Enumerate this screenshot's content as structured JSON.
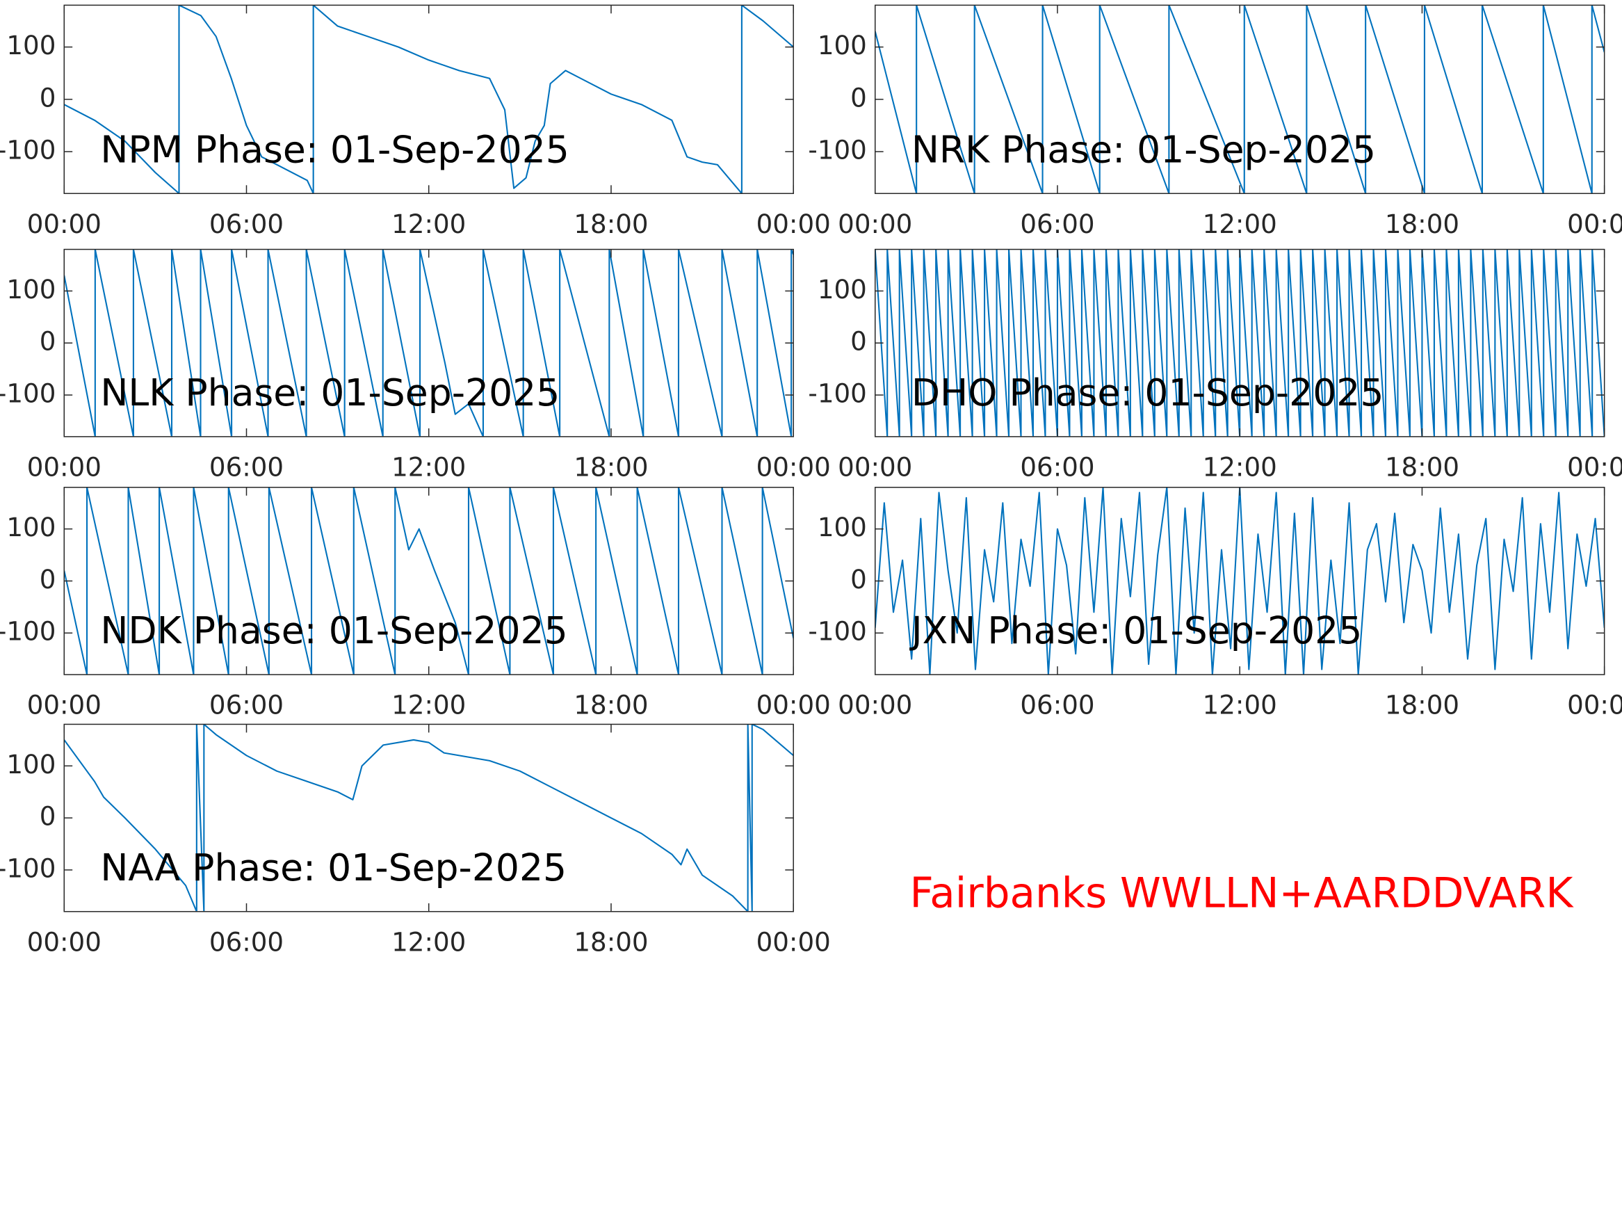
{
  "chart_data": [
    {
      "type": "line",
      "title": "NPM Phase: 01-Sep-2025",
      "color": "#0072bd",
      "x": [
        0,
        1,
        2,
        3,
        3.78,
        3.78,
        4.5,
        5,
        5.5,
        6,
        6.5,
        7,
        8,
        8.2,
        8.2,
        9,
        10,
        11,
        12,
        13,
        14,
        14.5,
        14.8,
        15.2,
        15.5,
        15.8,
        16,
        16.5,
        17,
        18,
        19,
        20,
        20.5,
        21,
        21.5,
        22.3,
        22.3,
        23,
        24
      ],
      "values": [
        -10,
        -40,
        -80,
        -140,
        -180,
        180,
        160,
        120,
        40,
        -50,
        -110,
        -125,
        -155,
        -180,
        180,
        140,
        120,
        100,
        75,
        55,
        40,
        -20,
        -170,
        -150,
        -80,
        -50,
        30,
        55,
        40,
        10,
        -10,
        -40,
        -110,
        -120,
        -125,
        -180,
        180,
        150,
        100
      ],
      "xlim": [
        0,
        24
      ],
      "xticks": [
        {
          "value": 0,
          "label": "00:00"
        },
        {
          "value": 6,
          "label": "06:00"
        },
        {
          "value": 12,
          "label": "12:00"
        },
        {
          "value": 18,
          "label": "18:00"
        },
        {
          "value": 24,
          "label": "00:00"
        }
      ],
      "ylim": [
        -180,
        180
      ],
      "yticks": [
        -100,
        0,
        100
      ]
    },
    {
      "type": "line",
      "title": "NRK Phase: 01-Sep-2025",
      "color": "#0072bd",
      "x": [
        0,
        1.36,
        1.36,
        3.27,
        3.27,
        5.51,
        5.51,
        7.39,
        7.39,
        9.67,
        9.67,
        12.15,
        12.15,
        14.2,
        14.2,
        16.14,
        16.14,
        18.08,
        18.08,
        19.98,
        19.98,
        21.99,
        21.99,
        23.59,
        23.59,
        24
      ],
      "values": [
        130,
        -180,
        180,
        -180,
        180,
        -180,
        180,
        -180,
        180,
        -180,
        180,
        -180,
        180,
        -180,
        180,
        -180,
        180,
        -180,
        180,
        -180,
        180,
        -180,
        180,
        -180,
        180,
        90
      ],
      "xlim": [
        0,
        24
      ],
      "xticks": [
        {
          "value": 0,
          "label": "00:00"
        },
        {
          "value": 6,
          "label": "06:00"
        },
        {
          "value": 12,
          "label": "12:00"
        },
        {
          "value": 18,
          "label": "18:00"
        },
        {
          "value": 24,
          "label": "00:00"
        }
      ],
      "ylim": [
        -180,
        180
      ],
      "yticks": [
        -100,
        0,
        100
      ]
    },
    {
      "type": "line",
      "title": "NLK Phase: 01-Sep-2025",
      "color": "#0072bd",
      "x": [
        0,
        1.02,
        1.02,
        2.28,
        2.28,
        3.54,
        3.54,
        4.49,
        4.49,
        5.51,
        5.51,
        6.71,
        6.71,
        7.97,
        7.97,
        9.23,
        9.23,
        10.49,
        10.49,
        11.71,
        11.71,
        12.53,
        12.87,
        13.31,
        13.79,
        13.79,
        15.11,
        15.11,
        16.31,
        16.31,
        17.94,
        17.94,
        19.06,
        19.06,
        20.22,
        20.22,
        21.65,
        21.65,
        22.81,
        22.81,
        23.93,
        23.93,
        24
      ],
      "values": [
        130,
        -180,
        180,
        -180,
        180,
        -180,
        180,
        -180,
        180,
        -180,
        180,
        -180,
        180,
        -180,
        180,
        -180,
        180,
        -180,
        180,
        -180,
        180,
        -38,
        -137,
        -117,
        -180,
        180,
        -180,
        180,
        -180,
        180,
        -180,
        180,
        -180,
        180,
        -180,
        180,
        -180,
        180,
        -180,
        180,
        -180,
        180,
        170
      ],
      "xlim": [
        0,
        24
      ],
      "xticks": [
        {
          "value": 0,
          "label": "00:00"
        },
        {
          "value": 6,
          "label": "06:00"
        },
        {
          "value": 12,
          "label": "12:00"
        },
        {
          "value": 18,
          "label": "18:00"
        },
        {
          "value": 24,
          "label": "00:00"
        }
      ],
      "ylim": [
        -180,
        180
      ],
      "yticks": [
        -100,
        0,
        100
      ]
    },
    {
      "type": "line",
      "title": "DHO Phase: 01-Sep-2025",
      "color": "#0072bd",
      "x": [
        0,
        0.4,
        0.4,
        0.8,
        0.8,
        1.2,
        1.2,
        1.6,
        1.6,
        2,
        2,
        2.4,
        2.4,
        2.8,
        2.8,
        3.2,
        3.2,
        3.6,
        3.6,
        4,
        4,
        4.4,
        4.4,
        4.8,
        4.8,
        5.2,
        5.2,
        5.6,
        5.6,
        6,
        6,
        6.4,
        6.4,
        6.8,
        6.8,
        7.2,
        7.2,
        7.6,
        7.6,
        8,
        8,
        8.4,
        8.4,
        8.8,
        8.8,
        9.2,
        9.2,
        9.6,
        9.6,
        10,
        10,
        10.4,
        10.4,
        10.8,
        10.8,
        11.2,
        11.2,
        11.6,
        11.6,
        12,
        12,
        12.4,
        12.4,
        12.8,
        12.8,
        13.2,
        13.2,
        13.6,
        13.6,
        14,
        14,
        14.4,
        14.4,
        14.8,
        14.8,
        15.2,
        15.2,
        15.6,
        15.6,
        16,
        16,
        16.4,
        16.4,
        16.8,
        16.8,
        17.2,
        17.2,
        17.6,
        17.6,
        18,
        18,
        18.4,
        18.4,
        18.8,
        18.8,
        19.2,
        19.2,
        19.6,
        19.6,
        20,
        20,
        20.4,
        20.4,
        20.8,
        20.8,
        21.2,
        21.2,
        21.6,
        21.6,
        22,
        22,
        22.4,
        22.4,
        22.8,
        22.8,
        23.2,
        23.2,
        23.6,
        23.6,
        24
      ],
      "values": [
        180,
        -180,
        180,
        -180,
        180,
        -180,
        180,
        -180,
        180,
        -180,
        180,
        -180,
        180,
        -180,
        180,
        -180,
        180,
        -180,
        180,
        -180,
        180,
        -180,
        180,
        -180,
        180,
        -180,
        180,
        -180,
        180,
        -180,
        180,
        -180,
        180,
        -180,
        180,
        -180,
        180,
        -180,
        180,
        -180,
        180,
        -180,
        180,
        -180,
        180,
        -180,
        180,
        -180,
        180,
        -180,
        180,
        -180,
        180,
        -180,
        180,
        -180,
        180,
        -180,
        180,
        -180,
        180,
        -180,
        180,
        -180,
        180,
        -180,
        180,
        -180,
        180,
        -180,
        180,
        -180,
        180,
        -180,
        180,
        -180,
        180,
        -180,
        180,
        -180,
        180,
        -180,
        180,
        -180,
        180,
        -180,
        180,
        -180,
        180,
        -180,
        180,
        -180,
        180,
        -180,
        180,
        -180,
        180,
        -180,
        180,
        -180,
        180,
        -180,
        180,
        -180,
        180,
        -180,
        180,
        -180,
        180,
        -180,
        180,
        -180,
        180,
        -180,
        180,
        -180,
        180,
        -180,
        180,
        -180
      ],
      "xlim": [
        0,
        24
      ],
      "xticks": [
        {
          "value": 0,
          "label": "00:00"
        },
        {
          "value": 6,
          "label": "06:00"
        },
        {
          "value": 12,
          "label": "12:00"
        },
        {
          "value": 18,
          "label": "18:00"
        },
        {
          "value": 24,
          "label": "00:00"
        }
      ],
      "ylim": [
        -180,
        180
      ],
      "yticks": [
        -100,
        0,
        100
      ]
    },
    {
      "type": "line",
      "title": "NDK Phase: 01-Sep-2025",
      "color": "#0072bd",
      "x": [
        0,
        0.75,
        0.75,
        2.11,
        2.11,
        3.13,
        3.13,
        4.26,
        4.26,
        5.41,
        5.41,
        6.74,
        6.74,
        8.14,
        8.14,
        9.53,
        9.53,
        10.89,
        10.89,
        11.34,
        11.68,
        12.19,
        12.87,
        13.31,
        13.31,
        14.67,
        14.67,
        16.1,
        16.1,
        17.5,
        17.5,
        18.86,
        18.86,
        20.22,
        20.22,
        21.65,
        21.65,
        22.98,
        22.98,
        24
      ],
      "values": [
        20,
        -180,
        180,
        -180,
        180,
        -180,
        180,
        -180,
        180,
        -180,
        180,
        -180,
        180,
        -180,
        180,
        -180,
        180,
        -180,
        180,
        60,
        100,
        20,
        -80,
        -180,
        180,
        -180,
        180,
        -180,
        180,
        -180,
        180,
        -180,
        180,
        -180,
        180,
        -180,
        180,
        -180,
        180,
        -110
      ],
      "xlim": [
        0,
        24
      ],
      "xticks": [
        {
          "value": 0,
          "label": "00:00"
        },
        {
          "value": 6,
          "label": "06:00"
        },
        {
          "value": 12,
          "label": "12:00"
        },
        {
          "value": 18,
          "label": "18:00"
        },
        {
          "value": 24,
          "label": "00:00"
        }
      ],
      "ylim": [
        -180,
        180
      ],
      "yticks": [
        -100,
        0,
        100
      ]
    },
    {
      "type": "line",
      "title": "JXN Phase: 01-Sep-2025",
      "color": "#0072bd",
      "x": [
        0,
        0.3,
        0.6,
        0.9,
        1.2,
        1.5,
        1.8,
        2.1,
        2.4,
        2.7,
        3,
        3.3,
        3.6,
        3.9,
        4.2,
        4.5,
        4.8,
        5.1,
        5.4,
        5.7,
        6,
        6.3,
        6.6,
        6.9,
        7.2,
        7.5,
        7.8,
        8.1,
        8.4,
        8.7,
        9,
        9.3,
        9.6,
        9.9,
        10.2,
        10.5,
        10.8,
        11.1,
        11.4,
        11.7,
        12,
        12.3,
        12.6,
        12.9,
        13.2,
        13.5,
        13.8,
        14.1,
        14.4,
        14.7,
        15,
        15.3,
        15.6,
        15.9,
        16.2,
        16.5,
        16.8,
        17.1,
        17.4,
        17.7,
        18,
        18.3,
        18.6,
        18.9,
        19.2,
        19.5,
        19.8,
        20.1,
        20.4,
        20.7,
        21,
        21.3,
        21.6,
        21.9,
        22.2,
        22.5,
        22.8,
        23.1,
        23.4,
        23.7,
        24
      ],
      "values": [
        -90,
        150,
        -60,
        40,
        -150,
        120,
        -180,
        170,
        20,
        -100,
        160,
        -170,
        60,
        -40,
        150,
        -120,
        80,
        -10,
        170,
        -180,
        100,
        30,
        -140,
        160,
        -60,
        180,
        -180,
        120,
        -30,
        170,
        -160,
        50,
        180,
        -180,
        140,
        -100,
        170,
        -180,
        60,
        -130,
        180,
        -170,
        90,
        -60,
        170,
        -180,
        130,
        -180,
        160,
        -170,
        40,
        -120,
        150,
        -180,
        60,
        110,
        -40,
        130,
        -80,
        70,
        20,
        -100,
        140,
        -60,
        90,
        -150,
        30,
        120,
        -170,
        80,
        -20,
        160,
        -150,
        110,
        -60,
        170,
        -130,
        90,
        -10,
        120,
        -90
      ],
      "xlim": [
        0,
        24
      ],
      "xticks": [
        {
          "value": 0,
          "label": "00:00"
        },
        {
          "value": 6,
          "label": "06:00"
        },
        {
          "value": 12,
          "label": "12:00"
        },
        {
          "value": 18,
          "label": "18:00"
        },
        {
          "value": 24,
          "label": "00:00"
        }
      ],
      "ylim": [
        -180,
        180
      ],
      "yticks": [
        -100,
        0,
        100
      ]
    },
    {
      "type": "line",
      "title": "NAA Phase: 01-Sep-2025",
      "color": "#0072bd",
      "x": [
        0,
        1,
        1.3,
        2,
        3,
        4,
        4.36,
        4.36,
        4.6,
        4.6,
        5,
        6,
        7,
        8,
        9,
        9.5,
        9.8,
        10.5,
        11.5,
        12,
        12.5,
        14,
        15,
        16,
        17,
        18,
        19,
        20,
        20.3,
        20.5,
        21,
        22,
        22.5,
        22.5,
        22.64,
        22.64,
        23,
        24
      ],
      "values": [
        150,
        70,
        40,
        0,
        -60,
        -130,
        -180,
        180,
        -180,
        180,
        160,
        120,
        90,
        70,
        50,
        35,
        100,
        140,
        150,
        145,
        125,
        110,
        90,
        60,
        30,
        0,
        -30,
        -70,
        -90,
        -60,
        -110,
        -150,
        -180,
        180,
        -180,
        180,
        170,
        120
      ],
      "xlim": [
        0,
        24
      ],
      "xticks": [
        {
          "value": 0,
          "label": "00:00"
        },
        {
          "value": 6,
          "label": "06:00"
        },
        {
          "value": 12,
          "label": "12:00"
        },
        {
          "value": 18,
          "label": "18:00"
        },
        {
          "value": 24,
          "label": "00:00"
        }
      ],
      "ylim": [
        -180,
        180
      ],
      "yticks": [
        -100,
        0,
        100
      ]
    }
  ],
  "annotation": "Fairbanks WWLLN+AARDDVARK"
}
